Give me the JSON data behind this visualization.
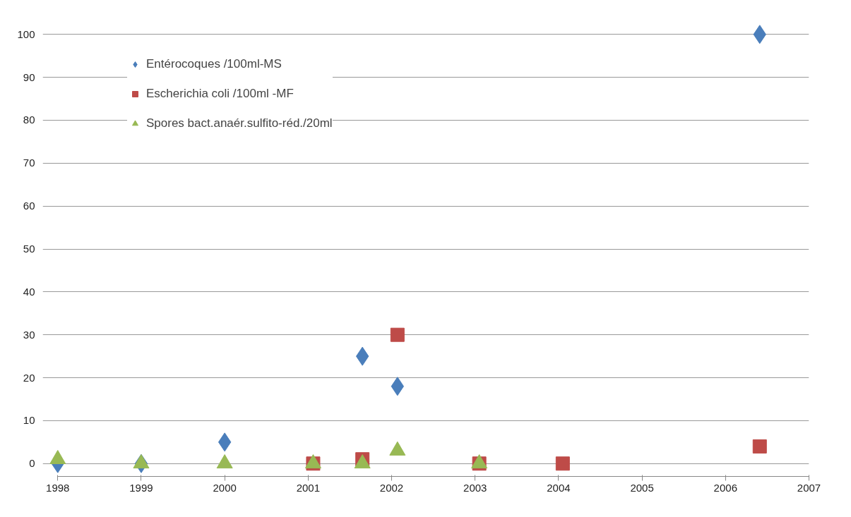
{
  "chart_data": {
    "type": "scatter",
    "xlim": [
      1998,
      2007
    ],
    "xticks": [
      1998,
      1999,
      2000,
      2001,
      2002,
      2003,
      2004,
      2005,
      2006,
      2007
    ],
    "ylim": [
      0,
      100
    ],
    "yticks": [
      0,
      10,
      20,
      30,
      40,
      50,
      60,
      70,
      80,
      90,
      100
    ],
    "grid": "y",
    "legend": "top left",
    "series": [
      {
        "name": "Entérocoques /100ml-MS",
        "color": "#4a7ebb",
        "marker": "diamond",
        "x": [
          1998.0,
          1999.0,
          2000.0,
          2001.65,
          2002.07,
          2006.41
        ],
        "values": [
          0,
          0,
          5,
          25,
          18,
          100
        ]
      },
      {
        "name": "Escherichia coli /100ml -MF",
        "color": "#be4b48",
        "marker": "square",
        "x": [
          2001.06,
          2001.65,
          2002.07,
          2003.05,
          2004.05,
          2006.41
        ],
        "values": [
          0,
          1,
          30,
          0,
          0,
          4
        ]
      },
      {
        "name": "Spores bact.anaér.sulfito-réd./20ml",
        "color": "#98b954",
        "marker": "triangle",
        "x": [
          1998.0,
          1999.0,
          2000.0,
          2001.06,
          2001.65,
          2002.07,
          2003.05
        ],
        "values": [
          1,
          0,
          0,
          0,
          0,
          3,
          0
        ]
      }
    ]
  }
}
